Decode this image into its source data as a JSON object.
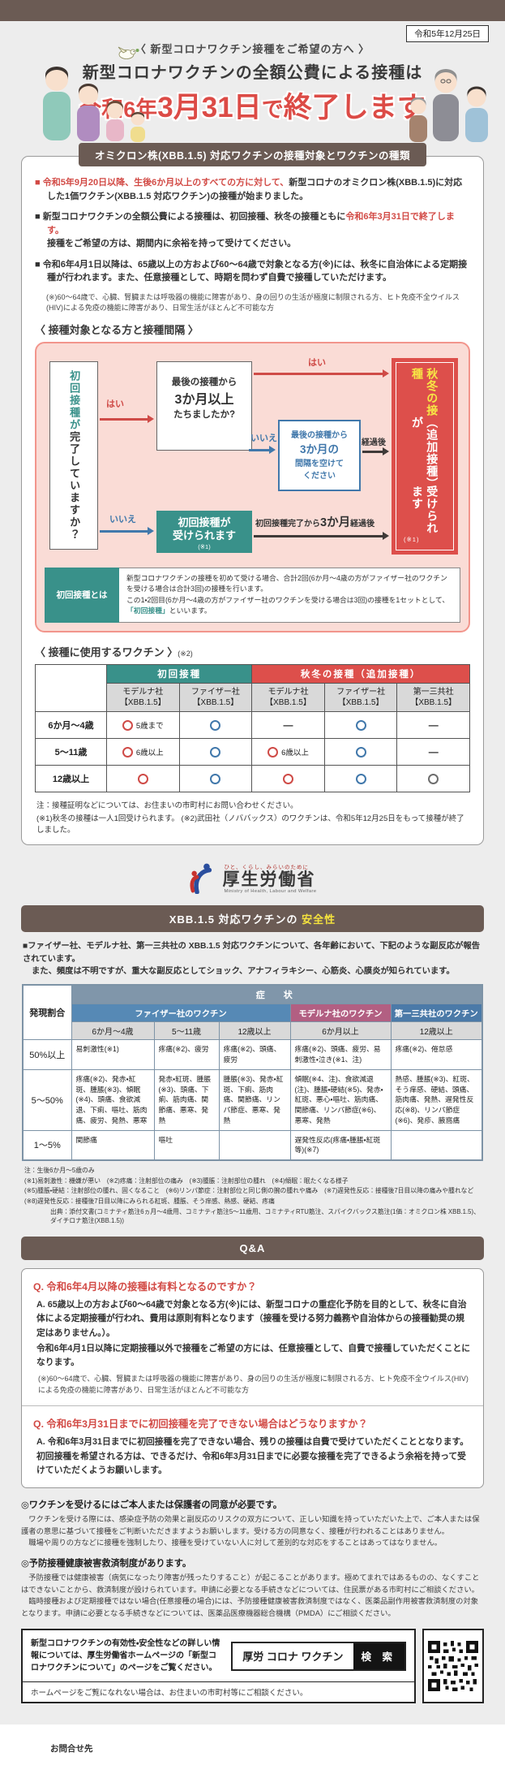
{
  "colors": {
    "brand_brown": "#6b5b54",
    "accent_red": "#dc4b46",
    "accent_teal": "#39918a",
    "accent_blue": "#4178ab",
    "accent_yellow": "#f7e645",
    "flow_pink_bg": "#fadcd6"
  },
  "header": {
    "date": "令和5年12月25日",
    "lead": "〈 新型コロナワクチン接種をご希望の方へ 〉",
    "title_top": "新型コロナワクチンの全額公費による接種は",
    "title_p1": "令和6年",
    "title_big1": "3月31日",
    "title_p2": "で",
    "title_big2": "終了します",
    "section_label": "オミクロン株(XBB.1.5) 対応ワクチンの接種対象とワクチンの種類"
  },
  "bullets": {
    "b1_red": "■ 令和5年9月20日以降、生後6か月以上のすべての方に対して、",
    "b1_rest": "新型コロナのオミクロン株(XBB.1.5)に対応した1価ワクチン(XBB.1.5 対応ワクチン)の接種が始まりました。",
    "b2_pre": "■ 新型コロナワクチンの全額公費による接種は、初回接種、秋冬の接種ともに",
    "b2_red": "令和6年3月31日で終了します。",
    "b2_rest": "接種をご希望の方は、期間内に余裕を持って受けてください。",
    "b3": "■ 令和6年4月1日以降は、65歳以上の方および60〜64歳で対象となる方(※)には、秋冬に自治体による定期接種が行われます。また、任意接種として、時期を問わず自費で接種していただけます。",
    "note": "(※)60〜64歳で、心臓、腎臓または呼吸器の機能に障害があり、身の回りの生活が極度に制限される方、ヒト免疫不全ウイルス(HIV)による免疫の機能に障害があり、日常生活がほとんど不可能な方"
  },
  "flow": {
    "heading": "〈 接種対象となる方と接種間隔 〉",
    "start_teal": "初回接種が",
    "start_rest": "完了していますか？",
    "yes": "はい",
    "no": "いいえ",
    "q2_s1": "最後の接種から",
    "q2_l": "3か月以上",
    "q2_s2": "たちましたか?",
    "wait_s1": "最後の接種から",
    "wait_l": "3か月の",
    "wait_s2": "間隔を空けて",
    "wait_s3": "ください",
    "elapsed": "経過後",
    "primary_l1": "初回接種が",
    "primary_l2": "受けられます",
    "primary_note": "(※1)",
    "after_pre": "初回接種完了から",
    "after_big": "3か月",
    "after_post": "経過後",
    "result_yellow": "秋冬の接種",
    "result_w1": "（追加接種）が",
    "result_w2": "受けられます",
    "result_note": "(※1)",
    "def_label": "初回接種とは",
    "def_text1": "新型コロナワクチンの接種を初めて受ける場合、合計2回(6か月〜4歳の方がファイザー社のワクチンを受ける場合は合計3回)の接種を行います。",
    "def_text2": "この1・2回目(6か月〜4歳の方がファイザー社のワクチンを受ける場合は3回)の接種を1セットとして、",
    "def_highlight": "「初回接種」",
    "def_text3": "といいます。"
  },
  "vaccine_table": {
    "heading": "〈 接種に使用するワクチン 〉",
    "heading_note": "(※2)",
    "groups": [
      {
        "label": "初回接種",
        "span": 2,
        "color": "teal"
      },
      {
        "label": "秋冬の接種（追加接種）",
        "span": 3,
        "color": "red"
      }
    ],
    "columns": [
      {
        "company": "モデルナ社",
        "variant": "【XBB.1.5】"
      },
      {
        "company": "ファイザー社",
        "variant": "【XBB.1.5】"
      },
      {
        "company": "モデルナ社",
        "variant": "【XBB.1.5】"
      },
      {
        "company": "ファイザー社",
        "variant": "【XBB.1.5】"
      },
      {
        "company": "第一三共社",
        "variant": "【XBB.1.5】"
      }
    ],
    "rows": [
      {
        "label": "6か月〜4歳",
        "cells": [
          {
            "mark": "circle",
            "color": "red",
            "note": "5歳まで"
          },
          {
            "mark": "circle",
            "color": "blue"
          },
          {
            "mark": "dash"
          },
          {
            "mark": "circle",
            "color": "blue"
          },
          {
            "mark": "dash"
          }
        ]
      },
      {
        "label": "5〜11歳",
        "cells": [
          {
            "mark": "circle",
            "color": "red",
            "note": "6歳以上"
          },
          {
            "mark": "circle",
            "color": "blue"
          },
          {
            "mark": "circle",
            "color": "red",
            "note": "6歳以上"
          },
          {
            "mark": "circle",
            "color": "blue"
          },
          {
            "mark": "dash"
          }
        ]
      },
      {
        "label": "12歳以上",
        "cells": [
          {
            "mark": "circle",
            "color": "red"
          },
          {
            "mark": "circle",
            "color": "blue"
          },
          {
            "mark": "circle",
            "color": "red"
          },
          {
            "mark": "circle",
            "color": "blue"
          },
          {
            "mark": "circle",
            "color": "gray"
          }
        ]
      }
    ],
    "note1": "注：接種証明などについては、お住まいの市町村にお問い合わせください。",
    "note2": "(※1)秋冬の接種は一人1回受けられます。 (※2)武田社（ノババックス）のワクチンは、令和5年12月25日をもって接種が終了しました。"
  },
  "logo": {
    "tagline": "ひと、くらし、みらいのために",
    "name": "厚生労働省",
    "en": "Ministry of Health, Labour and Welfare"
  },
  "safety": {
    "header_pre": "XBB.1.5 対応ワクチンの",
    "header_accent": "安全性",
    "intro1": "■ファイザー社、モデルナ社、第一三共社の XBB.1.5 対応ワクチンについて、各年齢において、下記のような副反応が報告されています。",
    "intro2": "また、頻度は不明ですが、重大な副反応としてショック、アナフィラキシー、心筋炎、心膜炎が知られています。",
    "table": {
      "corner": "発現割合",
      "symptom_header": "症　状",
      "groups": [
        {
          "name": "ファイザー社のワクチン",
          "color": "#5689b5",
          "cols": [
            "6か月〜4歳",
            "5〜11歳",
            "12歳以上"
          ]
        },
        {
          "name": "モデルナ社のワクチン",
          "color": "#b25f82",
          "cols": [
            "6か月以上"
          ]
        },
        {
          "name": "第一三共社のワクチン",
          "color": "#4b7aa8",
          "cols": [
            "12歳以上"
          ]
        }
      ],
      "rows": [
        {
          "label": "50%以上",
          "cells": [
            "易刺激性(※1)",
            "疼痛(※2)、疲労",
            "疼痛(※2)、頭痛、疲労",
            "疼痛(※2)、頭痛、疲労、易刺激性・泣き(※1、注)",
            "疼痛(※2)、倦怠感"
          ]
        },
        {
          "label": "5〜50%",
          "cells": [
            "疼痛(※2)、発赤・紅斑、腫脹(※3)、傾眠(※4)、頭痛、食欲減退、下痢、嘔吐、筋肉痛、疲労、発熱、悪寒",
            "発赤・紅斑、腫脹(※3)、頭痛、下痢、筋肉痛、関節痛、悪寒、発熱",
            "腫脹(※3)、発赤・紅斑、下痢、筋肉痛、関節痛、リンパ節症、悪寒、発熱",
            "傾眠(※4、注)、食欲減退(注)、腫脹・硬結(※5)、発赤・紅斑、悪心・嘔吐、筋肉痛、関節痛、リンパ節症(※6)、悪寒、発熱",
            "熱感、腫脹(※3)、紅斑、そう痒感、硬結、頭痛、筋肉痛、発熱、遅発性反応(※8)、リンパ節症(※6)、発疹、腋窩痛"
          ]
        },
        {
          "label": "1〜5%",
          "cells": [
            "関節痛",
            "嘔吐",
            "",
            "遅発性反応(疼痛・腫脹・紅斑等)(※7)",
            ""
          ]
        }
      ]
    },
    "notes": [
      "注：生後6か月〜5歳のみ",
      "(※1)易刺激性：機嫌が悪い　(※2)疼痛：注射部位の痛み　(※3)腫脹：注射部位の腫れ　(※4)傾眠：眠たくなる様子",
      "(※5)腫脹・硬結：注射部位の腫れ、固くなること　(※6)リンパ節症：注射部位と同じ側の腕の腫れや痛み　(※7)遅発性反応：接種後7日目以降の痛みや腫れなど",
      "(※8)遅発性反応：接種後7日目以降にみられる紅斑、腫脹、そう痒感、熱感、硬結、疼痛"
    ],
    "source": "出典：添付文書(コミナティ筋注6ヵ月〜4歳用、コミナティ筋注5〜11歳用、コミナティRTU筋注、スパイクバックス筋注(1価：オミクロン株 XBB.1.5)、ダイチロナ筋注(XBB.1.5))"
  },
  "qa": {
    "header": "Q&A",
    "items": [
      {
        "q": "Q. 令和6年4月以降の接種は有料となるのですか？",
        "a1": "A. 65歳以上の方および60〜64歳で対象となる方(※)には、新型コロナの重症化予防を目的として、秋冬に自治体による定期接種が行われ、費用は原則有料となります（接種を受ける努力義務や自治体からの接種勧奨の規定はありません。）。",
        "a2": "令和6年4月1日以降に定期接種以外で接種をご希望の方には、任意接種として、自費で接種していただくことになります。",
        "note": "(※)60〜64歳で、心臓、腎臓または呼吸器の機能に障害があり、身の回りの生活が極度に制限される方、ヒト免疫不全ウイルス(HIV)による免疫の機能に障害があり、日常生活がほとんど不可能な方"
      },
      {
        "q": "Q. 令和6年3月31日までに初回接種を完了できない場合はどうなりますか？",
        "a1": "A. 令和6年3月31日までに初回接種を完了できない場合、残りの接種は自費で受けていただくこととなります。初回接種を希望される方は、できるだけ、令和6年3月31日までに必要な接種を完了できるよう余裕を持って受けていただくようお願いします。",
        "a2": "",
        "note": ""
      }
    ]
  },
  "consent": {
    "title": "◎ワクチンを受けるにはご本人または保護者の同意が必要です。",
    "p1": "ワクチンを受ける際には、感染症予防の効果と副反応のリスクの双方について、正しい知識を持っていただいた上で、ご本人または保護者の意思に基づいて接種をご判断いただきますようお願いします。受ける方の同意なく、接種が行われることはありません。",
    "p2": "職場や周りの方などに接種を強制したり、接種を受けていない人に対して差別的な対応をすることはあってはなりません。"
  },
  "relief": {
    "title": "◎予防接種健康被害救済制度があります。",
    "p1": "予防接種では健康被害（病気になったり障害が残ったりすること）が起こることがあります。極めてまれではあるものの、なくすことはできないことから、救済制度が設けられています。申請に必要となる手続きなどについては、住民票がある市町村にご相談ください。",
    "p2": "臨時接種および定期接種ではない場合(任意接種の場合)には、予防接種健康被害救済制度ではなく、医薬品副作用被害救済制度の対象となります。申請に必要となる手続きなどについては、医薬品医療機器総合機構（PMDA）にご相談ください。"
  },
  "footer": {
    "info1": "新型コロナワクチンの有効性・安全性などの詳しい情報については、厚生労働省ホームページの「新型コロナワクチンについて」のページをご覧ください。",
    "search_query": "厚労 コロナ ワクチン",
    "search_button": "検 索",
    "info2": "ホームページをご覧になれない場合は、お住まいの市町村等にご相談ください。",
    "contact": "お問合せ先"
  }
}
